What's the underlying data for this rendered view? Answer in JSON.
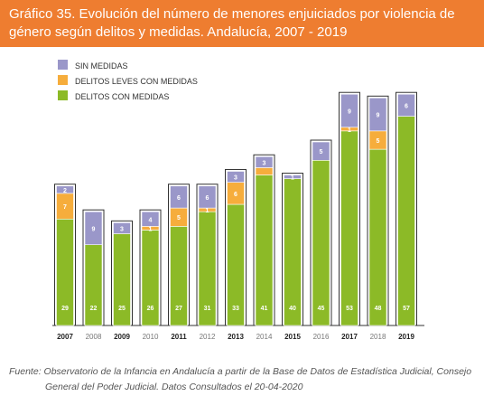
{
  "title_line1": "Gráfico 35. Evolución del número de menores enjuiciados por violencia de",
  "title_line2": "género según delitos y medidas. Andalucía, 2007 - 2019",
  "source_line1": "Fuente: Observatorio de la Infancia en Andalucía a partir de la Base de Datos de Estadística Judicial, Consejo",
  "source_line2": "General del Poder Judicial. Datos Consultados el 20-04-2020",
  "colors": {
    "title_bg": "#ee7d30",
    "sin": "#9a97c9",
    "leves": "#f6ad3c",
    "con": "#8cba27"
  },
  "chart_data": {
    "type": "bar",
    "stacked": true,
    "categories": [
      "2007",
      "2008",
      "2009",
      "2010",
      "2011",
      "2012",
      "2013",
      "2014",
      "2015",
      "2016",
      "2017",
      "2018",
      "2019"
    ],
    "series": [
      {
        "name": "DELITOS CON MEDIDAS",
        "key": "con",
        "values": [
          29,
          22,
          25,
          26,
          27,
          31,
          33,
          41,
          40,
          45,
          53,
          48,
          57
        ]
      },
      {
        "name": "DELITOS LEVES CON MEDIDAS",
        "key": "leves",
        "values": [
          7,
          0,
          0,
          1,
          5,
          1,
          6,
          null,
          null,
          null,
          1,
          5,
          null
        ]
      },
      {
        "name": "SIN MEDIDAS",
        "key": "sin",
        "values": [
          2,
          9,
          3,
          4,
          6,
          6,
          3,
          3,
          1,
          5,
          9,
          9,
          6
        ]
      }
    ],
    "unlabeled_segments": [
      {
        "category": "2014",
        "series": "DELITOS LEVES CON MEDIDAS",
        "value": 2
      }
    ],
    "legend": [
      "SIN MEDIDAS",
      "DELITOS LEVES CON MEDIDAS",
      "DELITOS CON MEDIDAS"
    ],
    "legend_position": "top-left",
    "grid": false,
    "ylim": [
      0,
      70
    ],
    "highlighted_years": [
      "2007",
      "2009",
      "2011",
      "2013",
      "2015",
      "2017",
      "2019"
    ]
  }
}
